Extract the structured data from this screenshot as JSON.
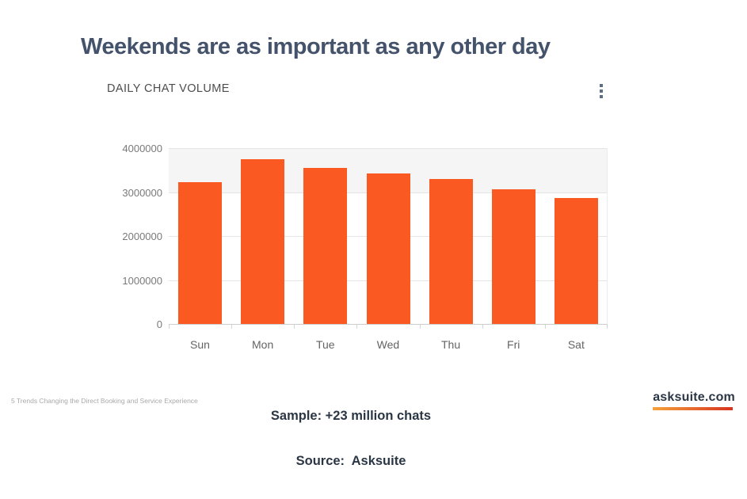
{
  "page": {
    "title": "Weekends are as important as any other day"
  },
  "chart_widget": {
    "header": "DAILY CHAT VOLUME",
    "menu_icon": "kebab-menu-icon"
  },
  "chart_data": {
    "type": "bar",
    "title": "DAILY CHAT VOLUME",
    "categories": [
      "Sun",
      "Mon",
      "Tue",
      "Wed",
      "Thu",
      "Fri",
      "Sat"
    ],
    "values": [
      3230000,
      3750000,
      3550000,
      3420000,
      3290000,
      3060000,
      2860000
    ],
    "xlabel": "",
    "ylabel": "",
    "ylim": [
      0,
      4000000
    ],
    "ytick_interval": 1000000,
    "ytick_labels": [
      "0",
      "1000000",
      "2000000",
      "3000000",
      "4000000"
    ],
    "grid": true,
    "legend": false,
    "bar_color": "#fa5a22",
    "highlight_band": {
      "from": 3000000,
      "to": 4000000,
      "color": "#f5f5f5"
    }
  },
  "footer": {
    "sample_line": "Sample: +23 million chats",
    "source_line": "Source:  Asksuite",
    "deck_title": "5 Trends Changing the Direct Booking and Service Experience",
    "brand": "asksuite.com"
  },
  "colors": {
    "title_text": "#44536b",
    "bar": "#fa5a22",
    "footer_text": "#2b3645",
    "underline_gradient_start": "#f5a23c",
    "underline_gradient_end": "#d7341f"
  }
}
